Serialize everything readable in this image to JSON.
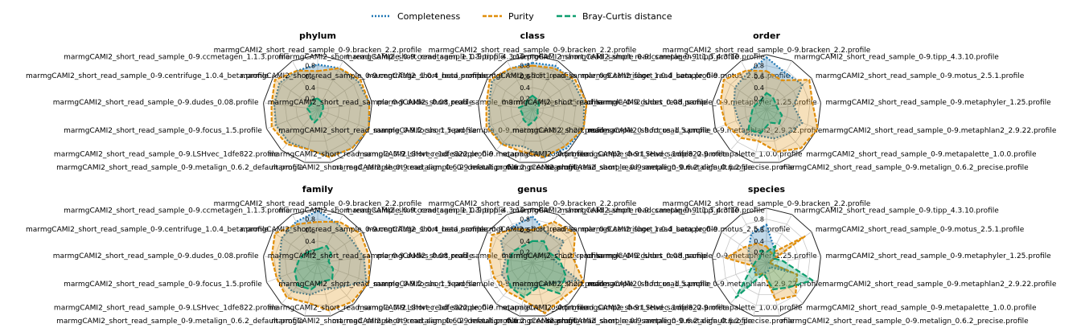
{
  "colors": {
    "completeness": "#1f77b4",
    "purity": "#e08e0b",
    "bray_curtis": "#0d9e6e",
    "highlight_label": "#ff0000"
  },
  "legend": {
    "items": [
      {
        "key": "completeness",
        "label": "Completeness"
      },
      {
        "key": "purity",
        "label": "Purity"
      },
      {
        "key": "bray_curtis",
        "label": "Bray-Curtis distance"
      }
    ]
  },
  "chart_data": [
    {
      "type": "radar",
      "title": "phylum",
      "rticks": [
        0.2,
        0.4,
        0.6,
        0.8
      ],
      "rlim": [
        0,
        1
      ],
      "highlight_category": 0,
      "categories": [
        "marmgCAMI2_short_read_sample_0-9.bracken_2.2.profile",
        "marmgCAMI2_short_read_sample_0-9.tipp_4.3.10.profile",
        "marmgCAMI2_short_read_sample_0-9.motus_2.5.1.profile",
        "marmgCAMI2_short_read_sample_0-9.metaphyler_1.25.profile",
        "marmgCAMI2_short_read_sample_0-9.metaphlan2_2.9.22.profile",
        "marmgCAMI2_short_read_sample_0-9.metapalette_1.0.0.profile",
        "marmgCAMI2_short_read_sample_0-9.metalign_0.6.2_precise.profile",
        "marmgCAMI2_short_read_sample_0-9.metalign_0.6.2_default.profile",
        "marmgCAMI2_short_read_sample_0-9.LSHvec_1dfe822.profile",
        "marmgCAMI2_short_read_sample_0-9.focus_1.5.profile",
        "marmgCAMI2_short_read_sample_0-9.dudes_0.08.profile",
        "marmgCAMI2_short_read_sample_0-9.centrifuge_1.0.4_beta.profile",
        "marmgCAMI2_short_read_sample_0-9.ccmetagen_1.1.3.profile"
      ],
      "series": [
        {
          "name": "Completeness",
          "key": "completeness",
          "values": [
            0.82,
            0.85,
            0.9,
            0.95,
            1.0,
            0.95,
            0.9,
            0.75,
            0.8,
            0.82,
            0.8,
            0.85,
            0.8
          ]
        },
        {
          "name": "Purity",
          "key": "purity",
          "values": [
            0.7,
            0.85,
            0.95,
            0.95,
            1.0,
            0.95,
            0.9,
            0.75,
            0.85,
            0.9,
            0.85,
            0.95,
            0.8
          ]
        },
        {
          "name": "Bray-Curtis distance",
          "key": "bray_curtis",
          "values": [
            0.2,
            0.15,
            0.12,
            0.1,
            0.08,
            0.1,
            0.15,
            0.25,
            0.2,
            0.15,
            0.2,
            0.15,
            0.2
          ]
        }
      ]
    },
    {
      "type": "radar",
      "title": "class",
      "rticks": [
        0.2,
        0.4,
        0.6,
        0.8
      ],
      "rlim": [
        0,
        1
      ],
      "highlight_category": null,
      "categories": [
        "marmgCAMI2_short_read_sample_0-9.bracken_2.2.profile",
        "marmgCAMI2_short_read_sample_0-9.tipp_4.3.10.profile",
        "marmgCAMI2_short_read_sample_0-9.motus_2.5.1.profile",
        "marmgCAMI2_short_read_sample_0-9.metaphyler_1.25.profile",
        "marmgCAMI2_short_read_sample_0-9.metaphlan2_2.9.22.profile",
        "marmgCAMI2_short_read_sample_0-9.metapalette_1.0.0.profile",
        "marmgCAMI2_short_read_sample_0-9.metalign_0.6.2_precise.profile",
        "marmgCAMI2_short_read_sample_0-9.metalign_0.6.2_default.profile",
        "marmgCAMI2_short_read_sample_0-9.LSHvec_1dfe822.profile",
        "marmgCAMI2_short_read_sample_0-9.focus_1.5.profile",
        "marmgCAMI2_short_read_sample_0-9.dudes_0.08.profile",
        "marmgCAMI2_short_read_sample_0-9.centrifuge_1.0.4_beta.profile",
        "marmgCAMI2_short_read_sample_0-9.ccmetagen_1.1.3.profile"
      ],
      "series": [
        {
          "name": "Completeness",
          "key": "completeness",
          "values": [
            0.85,
            0.9,
            0.9,
            0.95,
            1.0,
            0.95,
            0.9,
            0.7,
            0.85,
            0.85,
            0.8,
            0.9,
            0.85
          ]
        },
        {
          "name": "Purity",
          "key": "purity",
          "values": [
            0.8,
            0.85,
            0.95,
            1.0,
            1.0,
            0.9,
            0.9,
            0.8,
            0.85,
            0.9,
            0.85,
            0.95,
            0.85
          ]
        },
        {
          "name": "Bray-Curtis distance",
          "key": "bray_curtis",
          "values": [
            0.25,
            0.2,
            0.15,
            0.1,
            0.1,
            0.15,
            0.2,
            0.3,
            0.25,
            0.2,
            0.25,
            0.15,
            0.2
          ]
        }
      ]
    },
    {
      "type": "radar",
      "title": "order",
      "rticks": [
        0.2,
        0.4,
        0.6,
        0.8
      ],
      "rlim": [
        0,
        1
      ],
      "highlight_category": null,
      "categories": [
        "marmgCAMI2_short_read_sample_0-9.bracken_2.2.profile",
        "marmgCAMI2_short_read_sample_0-9.tipp_4.3.10.profile",
        "marmgCAMI2_short_read_sample_0-9.motus_2.5.1.profile",
        "marmgCAMI2_short_read_sample_0-9.metaphyler_1.25.profile",
        "marmgCAMI2_short_read_sample_0-9.metaphlan2_2.9.22.profile",
        "marmgCAMI2_short_read_sample_0-9.metapalette_1.0.0.profile",
        "marmgCAMI2_short_read_sample_0-9.metalign_0.6.2_precise.profile",
        "marmgCAMI2_short_read_sample_0-9.metalign_0.6.2_default.profile",
        "marmgCAMI2_short_read_sample_0-9.LSHvec_1dfe822.profile",
        "marmgCAMI2_short_read_sample_0-9.focus_1.5.profile",
        "marmgCAMI2_short_read_sample_0-9.dudes_0.08.profile",
        "marmgCAMI2_short_read_sample_0-9.centrifuge_1.0.4_beta.profile",
        "marmgCAMI2_short_read_sample_0-9.ccmetagen_1.1.3.profile"
      ],
      "series": [
        {
          "name": "Completeness",
          "key": "completeness",
          "values": [
            0.95,
            0.75,
            0.8,
            0.5,
            0.7,
            0.6,
            0.55,
            0.5,
            0.6,
            0.55,
            0.6,
            0.7,
            0.75
          ]
        },
        {
          "name": "Purity",
          "key": "purity",
          "values": [
            0.7,
            0.6,
            0.95,
            0.85,
            1.0,
            0.95,
            0.8,
            0.6,
            0.7,
            0.8,
            0.85,
            0.95,
            0.8
          ]
        },
        {
          "name": "Bray-Curtis distance",
          "key": "bray_curtis",
          "values": [
            0.3,
            0.25,
            0.2,
            0.2,
            0.3,
            0.35,
            0.25,
            0.45,
            0.5,
            0.3,
            0.25,
            0.2,
            0.2
          ]
        }
      ]
    },
    {
      "type": "radar",
      "title": "family",
      "rticks": [
        0.2,
        0.4,
        0.6,
        0.8
      ],
      "rlim": [
        0,
        1
      ],
      "highlight_category": null,
      "categories": [
        "marmgCAMI2_short_read_sample_0-9.bracken_2.2.profile",
        "marmgCAMI2_short_read_sample_0-9.tipp_4.3.10.profile",
        "marmgCAMI2_short_read_sample_0-9.motus_2.5.1.profile",
        "marmgCAMI2_short_read_sample_0-9.metaphyler_1.25.profile",
        "marmgCAMI2_short_read_sample_0-9.metaphlan2_2.9.22.profile",
        "marmgCAMI2_short_read_sample_0-9.metapalette_1.0.0.profile",
        "marmgCAMI2_short_read_sample_0-9.metalign_0.6.2_precise.profile",
        "marmgCAMI2_short_read_sample_0-9.metalign_0.6.2_default.profile",
        "marmgCAMI2_short_read_sample_0-9.LSHvec_1dfe822.profile",
        "marmgCAMI2_short_read_sample_0-9.focus_1.5.profile",
        "marmgCAMI2_short_read_sample_0-9.dudes_0.08.profile",
        "marmgCAMI2_short_read_sample_0-9.centrifuge_1.0.4_beta.profile",
        "marmgCAMI2_short_read_sample_0-9.ccmetagen_1.1.3.profile"
      ],
      "series": [
        {
          "name": "Completeness",
          "key": "completeness",
          "values": [
            0.95,
            0.8,
            0.75,
            0.85,
            0.95,
            0.6,
            0.5,
            0.6,
            0.7,
            0.75,
            0.7,
            0.8,
            0.85
          ]
        },
        {
          "name": "Purity",
          "key": "purity",
          "values": [
            0.75,
            0.85,
            0.95,
            0.95,
            1.0,
            0.95,
            0.9,
            0.75,
            0.85,
            0.8,
            0.85,
            0.95,
            0.8
          ]
        },
        {
          "name": "Bray-Curtis distance",
          "key": "bray_curtis",
          "values": [
            0.25,
            0.35,
            0.3,
            0.2,
            0.3,
            0.4,
            0.35,
            0.5,
            0.55,
            0.45,
            0.35,
            0.3,
            0.25
          ]
        }
      ]
    },
    {
      "type": "radar",
      "title": "genus",
      "rticks": [
        0.2,
        0.4,
        0.6,
        0.8
      ],
      "rlim": [
        0,
        1
      ],
      "highlight_category": null,
      "categories": [
        "marmgCAMI2_short_read_sample_0-9.bracken_2.2.profile",
        "marmgCAMI2_short_read_sample_0-9.tipp_4.3.10.profile",
        "marmgCAMI2_short_read_sample_0-9.motus_2.5.1.profile",
        "marmgCAMI2_short_read_sample_0-9.metaphyler_1.25.profile",
        "marmgCAMI2_short_read_sample_0-9.metaphlan2_2.9.22.profile",
        "marmgCAMI2_short_read_sample_0-9.metapalette_1.0.0.profile",
        "marmgCAMI2_short_read_sample_0-9.metalign_0.6.2_precise.profile",
        "marmgCAMI2_short_read_sample_0-9.metalign_0.6.2_default.profile",
        "marmgCAMI2_short_read_sample_0-9.LSHvec_1dfe822.profile",
        "marmgCAMI2_short_read_sample_0-9.focus_1.5.profile",
        "marmgCAMI2_short_read_sample_0-9.dudes_0.08.profile",
        "marmgCAMI2_short_read_sample_0-9.centrifuge_1.0.4_beta.profile",
        "marmgCAMI2_short_read_sample_0-9.ccmetagen_1.1.3.profile"
      ],
      "series": [
        {
          "name": "Completeness",
          "key": "completeness",
          "values": [
            0.85,
            0.6,
            0.7,
            0.4,
            0.9,
            0.5,
            0.45,
            0.5,
            0.6,
            0.6,
            0.5,
            0.7,
            0.75
          ]
        },
        {
          "name": "Purity",
          "key": "purity",
          "values": [
            0.6,
            0.85,
            0.95,
            0.75,
            1.0,
            0.85,
            0.95,
            0.7,
            0.7,
            0.75,
            0.8,
            0.9,
            0.7
          ]
        },
        {
          "name": "Bray-Curtis distance",
          "key": "bray_curtis",
          "values": [
            0.4,
            0.45,
            0.35,
            0.5,
            0.65,
            0.75,
            0.45,
            0.65,
            0.6,
            0.5,
            0.45,
            0.4,
            0.35
          ]
        }
      ]
    },
    {
      "type": "radar",
      "title": "species",
      "rticks": [
        0.2,
        0.4,
        0.6,
        0.8
      ],
      "rlim": [
        0,
        1
      ],
      "highlight_category": 3,
      "categories": [
        "marmgCAMI2_short_read_sample_0-9.bracken_2.2.profile",
        "marmgCAMI2_short_read_sample_0-9.tipp_4.3.10.profile",
        "marmgCAMI2_short_read_sample_0-9.motus_2.5.1.profile",
        "marmgCAMI2_short_read_sample_0-9.metaphyler_1.25.profile",
        "marmgCAMI2_short_read_sample_0-9.metaphlan2_2.9.22.profile",
        "marmgCAMI2_short_read_sample_0-9.metapalette_1.0.0.profile",
        "marmgCAMI2_short_read_sample_0-9.metalign_0.6.2_precise.profile",
        "marmgCAMI2_short_read_sample_0-9.metalign_0.6.2_default.profile",
        "marmgCAMI2_short_read_sample_0-9.LSHvec_1dfe822.profile",
        "marmgCAMI2_short_read_sample_0-9.focus_1.5.profile",
        "marmgCAMI2_short_read_sample_0-9.dudes_0.08.profile",
        "marmgCAMI2_short_read_sample_0-9.centrifuge_1.0.4_beta.profile",
        "marmgCAMI2_short_read_sample_0-9.ccmetagen_1.1.3.profile"
      ],
      "series": [
        {
          "name": "Completeness",
          "key": "completeness",
          "values": [
            0.7,
            0.3,
            0.2,
            0.05,
            0.5,
            0.1,
            0.15,
            0.2,
            0.3,
            0.25,
            0.3,
            0.4,
            0.6
          ]
        },
        {
          "name": "Purity",
          "key": "purity",
          "values": [
            0.3,
            0.2,
            0.85,
            0.05,
            0.6,
            0.8,
            0.7,
            0.2,
            0.3,
            0.2,
            0.75,
            0.5,
            0.4
          ]
        },
        {
          "name": "Bray-Curtis distance",
          "key": "bray_curtis",
          "values": [
            0.2,
            0.35,
            0.15,
            0.3,
            0.9,
            0.6,
            0.5,
            0.2,
            0.85,
            0.3,
            0.2,
            0.15,
            0.25
          ]
        }
      ]
    }
  ]
}
